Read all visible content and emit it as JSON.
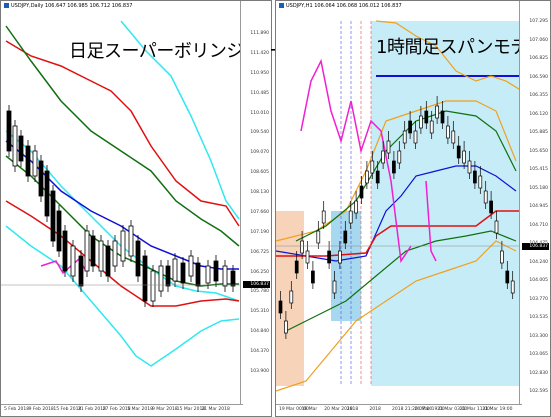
{
  "left_chart": {
    "title": "USDJPY,Daily  106.647 106.985 106.712 106.837",
    "overlay_text": "日足スーパーボリンジャー",
    "price_tag": "106.837",
    "y_labels": [
      "111.890",
      "111.420",
      "110.950",
      "110.485",
      "110.010",
      "109.540",
      "109.070",
      "108.605",
      "108.130",
      "107.660",
      "107.190",
      "106.725",
      "106.250",
      "105.780",
      "105.310",
      "104.840",
      "104.370",
      "103.900"
    ],
    "x_labels": [
      "5 Feb 2018",
      "9 Feb 2018",
      "15 Feb 2018",
      "21 Feb 2018",
      "27 Feb 2018",
      "5 Mar 2018",
      "9 Mar 2018",
      "15 Mar 2018",
      "21 Mar 2018"
    ],
    "colors": {
      "cyan": "#30e8f0",
      "red": "#e01010",
      "green": "#107010",
      "blue": "#1010d8",
      "magenta": "#f020d0"
    }
  },
  "right_chart": {
    "title": "USDJPY,H1  106.064 106.068 106.012 106.837",
    "overlay_text": "1時間足スパンモデル",
    "price_tag": "106.837",
    "y_labels": [
      "107.295",
      "107.060",
      "106.825",
      "106.590",
      "106.355",
      "106.120",
      "105.885",
      "105.650",
      "105.415",
      "105.180",
      "104.945",
      "104.710",
      "104.475",
      "104.240",
      "104.005",
      "103.770",
      "103.535",
      "103.300",
      "103.065",
      "102.830",
      "102.595"
    ],
    "x_labels": [
      "19 Mar 00:00",
      "19 Mar",
      "20 Mar 2018",
      "2018",
      "2018",
      "2018 21:20 07:00",
      "20 Mar 19:00",
      "21 Mar 03:00",
      "21 Mar 11:00",
      "21 Mar 19:00"
    ],
    "colors": {
      "orange": "#f0a020",
      "red": "#e01010",
      "green": "#107010",
      "blue": "#1010d8",
      "magenta": "#f020d0",
      "span_fill": "#aee6f4",
      "salmon": "#f5c8a8"
    }
  }
}
